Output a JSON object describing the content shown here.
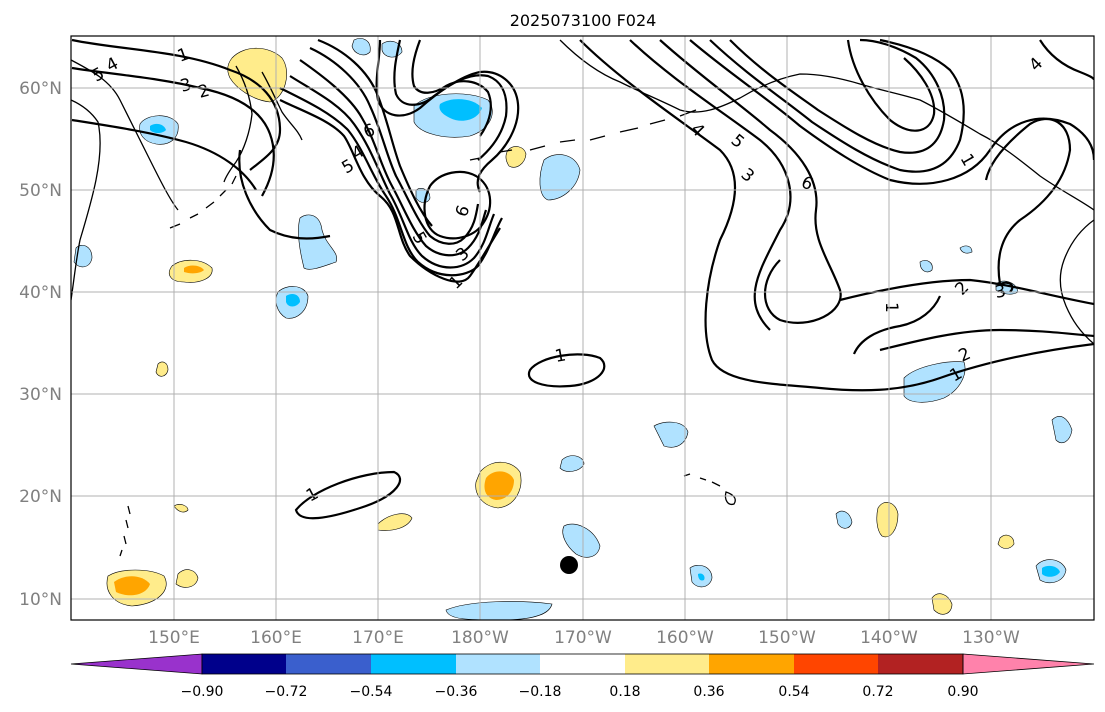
{
  "title": "2025073100 F024",
  "lat_labels": [
    "60°N",
    "50°N",
    "40°N",
    "30°N",
    "20°N",
    "10°N"
  ],
  "lon_labels": [
    "150°E",
    "160°E",
    "170°E",
    "180°W",
    "170°W",
    "160°W",
    "150°W",
    "140°W",
    "130°W"
  ],
  "colorbar": {
    "tick_labels": [
      "−0.90",
      "−0.72",
      "−0.54",
      "−0.36",
      "−0.18",
      "0.18",
      "0.36",
      "0.54",
      "0.72",
      "0.90"
    ],
    "colors": [
      "#9932cc",
      "#00008b",
      "#3a5fcd",
      "#00bfff",
      "#b0e2ff",
      "#ffffff",
      "#ffec8b",
      "#ffa500",
      "#ff4500",
      "#b22222",
      "#ff82ab"
    ]
  },
  "contour_labels": [
    "5",
    "4",
    "1",
    "3",
    "2",
    "6",
    "5",
    "4",
    "6",
    "5",
    "3",
    "1",
    "1",
    "1",
    "6",
    "5",
    "4",
    "3",
    "2",
    "1",
    "1",
    "2",
    "3",
    "4",
    "1"
  ],
  "marker": "black-dot"
}
